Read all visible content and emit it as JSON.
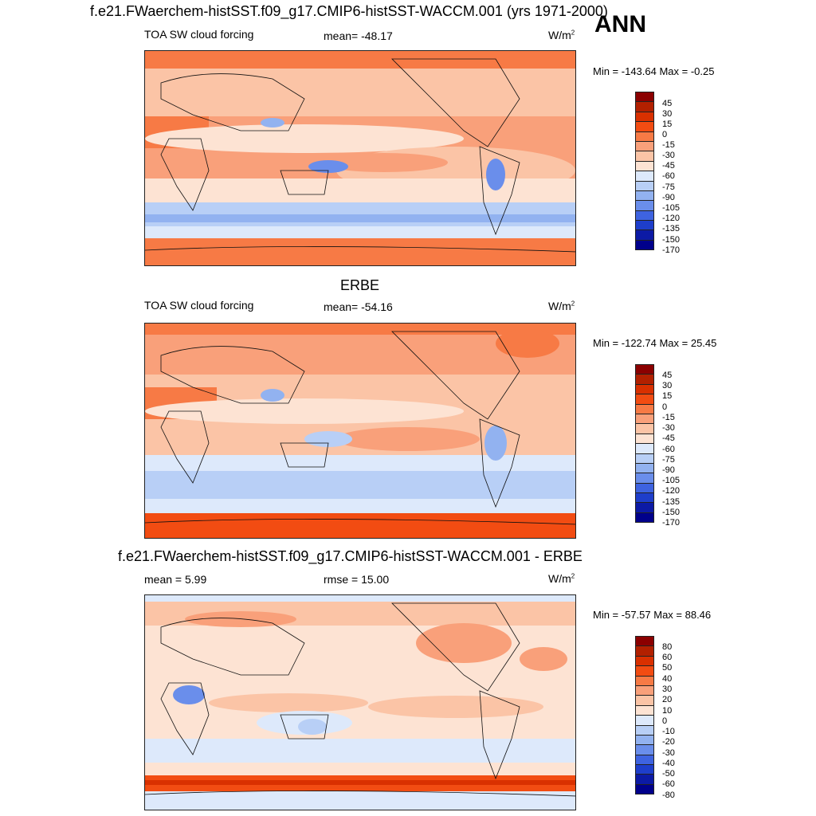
{
  "panels": {
    "top": {
      "title": "f.e21.FWaerchem-histSST.f09_g17.CMIP6-histSST-WACCM.001 (yrs 1971-2000)",
      "season": "ANN",
      "left_label": "TOA SW cloud forcing",
      "mean": "mean= -48.17",
      "units": "W/m",
      "units_sup": "2",
      "minmax": "Min = -143.64 Max =  -0.25",
      "colorbar_labels": [
        "45",
        "30",
        "15",
        "0",
        "-15",
        "-30",
        "-45",
        "-60",
        "-75",
        "-90",
        "-105",
        "-120",
        "-135",
        "-150",
        "-170"
      ]
    },
    "middle": {
      "title": "ERBE",
      "left_label": "TOA SW cloud forcing",
      "mean": "mean= -54.16",
      "units": "W/m",
      "units_sup": "2",
      "minmax": "Min = -122.74 Max =  25.45",
      "colorbar_labels": [
        "45",
        "30",
        "15",
        "0",
        "-15",
        "-30",
        "-45",
        "-60",
        "-75",
        "-90",
        "-105",
        "-120",
        "-135",
        "-150",
        "-170"
      ]
    },
    "bottom": {
      "title": "f.e21.FWaerchem-histSST.f09_g17.CMIP6-histSST-WACCM.001 - ERBE",
      "mean": "mean =   5.99",
      "rmse": "rmse =  15.00",
      "units": "W/m",
      "units_sup": "2",
      "minmax": "Min = -57.57 Max =  88.46",
      "colorbar_labels": [
        "80",
        "60",
        "50",
        "40",
        "30",
        "20",
        "10",
        "0",
        "-10",
        "-20",
        "-30",
        "-40",
        "-50",
        "-60",
        "-80"
      ]
    }
  },
  "colors": {
    "colorbar": [
      "#8b0000",
      "#b22000",
      "#d93000",
      "#f24c12",
      "#f77a45",
      "#f9a07a",
      "#fbc4a6",
      "#fde3d3",
      "#dde9fb",
      "#b8cff6",
      "#92b2f0",
      "#6a8eeb",
      "#3e63e0",
      "#1e3ecb",
      "#0c1aa5",
      "#00008b"
    ],
    "land_line": "#111111"
  }
}
